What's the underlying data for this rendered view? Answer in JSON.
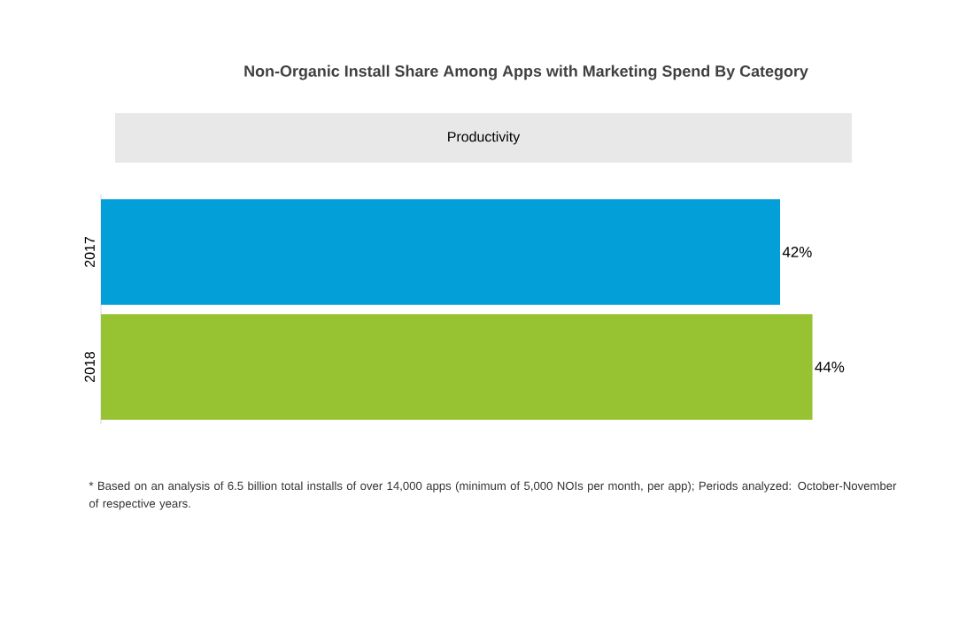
{
  "chart_data": {
    "type": "bar",
    "orientation": "horizontal",
    "title": "Non-Organic Install Share Among Apps with Marketing Spend By Category",
    "subtitle": "Productivity",
    "categories": [
      "2017",
      "2018"
    ],
    "values": [
      42,
      44
    ],
    "colors": [
      "#039fd9",
      "#97c232"
    ],
    "value_labels": [
      "42%",
      "44%"
    ],
    "annotations": [
      "* Based on an analysis of 6.5 billion total installs of over 14,000 apps (minimum of 5,000 NOIs per month, per app); Periods analyzed: October-November of respective years."
    ]
  }
}
